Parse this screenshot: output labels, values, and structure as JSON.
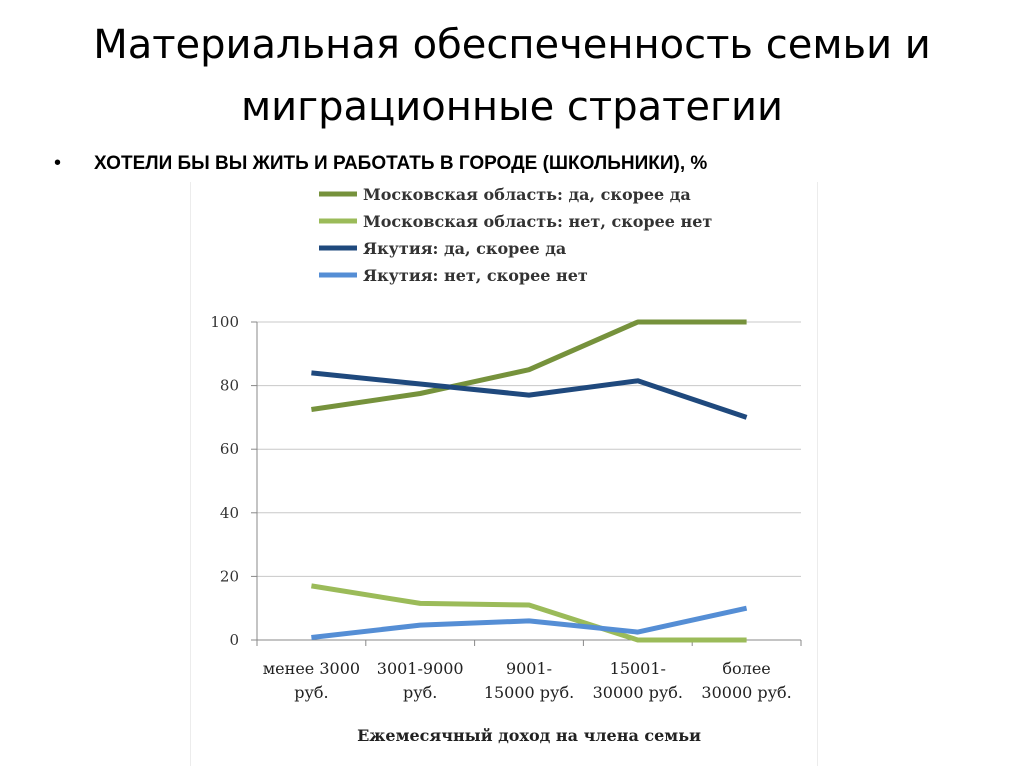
{
  "slide": {
    "title_line1": "Материальная обеспеченность семьи и",
    "title_line2": "миграционные стратегии",
    "bullet_symbol": "•",
    "bullet_text": "ХОТЕЛИ БЫ ВЫ ЖИТЬ И РАБОТАТЬ В ГОРОДЕ (ШКОЛЬНИКИ), %"
  },
  "chart_data": {
    "type": "line",
    "title": "",
    "xlabel": "Ежемесячный доход на члена семьи",
    "ylabel": "",
    "categories": [
      [
        "менее 3000",
        "руб."
      ],
      [
        "3001-9000",
        "руб."
      ],
      [
        "9001-",
        "15000 руб."
      ],
      [
        "15001-",
        "30000 руб."
      ],
      [
        "более",
        "30000 руб."
      ]
    ],
    "ylim": [
      0,
      100
    ],
    "yticks": [
      0,
      20,
      40,
      60,
      80,
      100
    ],
    "grid": true,
    "legend_position": "top",
    "series": [
      {
        "name": "Московская область: да, скорее да",
        "color": "#76923C",
        "values": [
          72.5,
          77.5,
          85,
          100,
          100
        ]
      },
      {
        "name": "Московская область: нет, скорее нет",
        "color": "#9BBB59",
        "values": [
          17,
          11.5,
          11,
          0,
          0
        ]
      },
      {
        "name": "Якутия: да, скорее да",
        "color": "#1F497D",
        "values": [
          84,
          80.5,
          77,
          81.5,
          70
        ]
      },
      {
        "name": "Якутия: нет, скорее нет",
        "color": "#558ED5",
        "values": [
          0.8,
          4.7,
          6,
          2.5,
          10
        ]
      }
    ]
  }
}
